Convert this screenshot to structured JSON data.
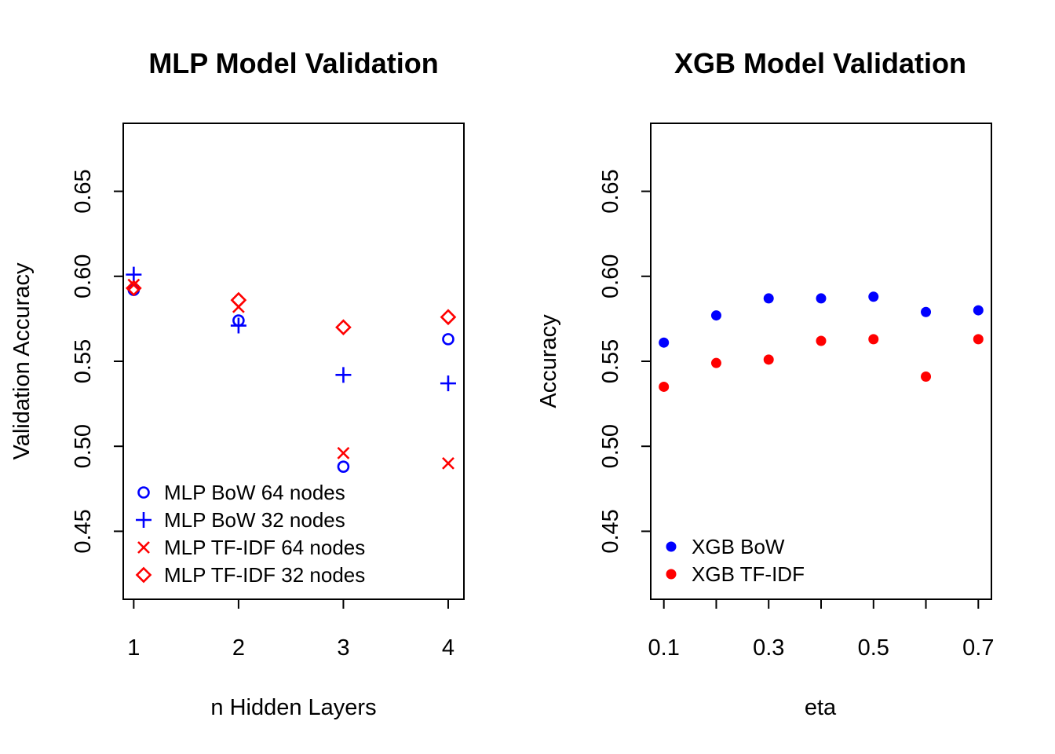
{
  "chart_data": [
    {
      "type": "scatter",
      "title": "MLP Model Validation",
      "xlabel": "n Hidden Layers",
      "ylabel": "Validation Accuracy",
      "xlim": [
        0.9,
        4.15
      ],
      "ylim": [
        0.41,
        0.69
      ],
      "x_ticks": [
        1,
        2,
        3,
        4
      ],
      "x_tick_labels": [
        "1",
        "2",
        "3",
        "4"
      ],
      "y_ticks": [
        0.45,
        0.5,
        0.55,
        0.6,
        0.65
      ],
      "y_tick_labels": [
        "0.45",
        "0.50",
        "0.55",
        "0.60",
        "0.65"
      ],
      "legend_position": "bottom-left",
      "series": [
        {
          "name": "MLP BoW 64 nodes",
          "color": "#0000ff",
          "marker": "circle-open",
          "x": [
            1,
            2,
            3,
            4
          ],
          "y": [
            0.592,
            0.574,
            0.488,
            0.563
          ]
        },
        {
          "name": "MLP BoW 32 nodes",
          "color": "#0000ff",
          "marker": "plus",
          "x": [
            1,
            2,
            3,
            4
          ],
          "y": [
            0.601,
            0.571,
            0.542,
            0.537
          ]
        },
        {
          "name": "MLP TF-IDF 64 nodes",
          "color": "#ff0000",
          "marker": "cross",
          "x": [
            1,
            2,
            3,
            4
          ],
          "y": [
            0.595,
            0.582,
            0.496,
            0.49
          ]
        },
        {
          "name": "MLP TF-IDF 32 nodes",
          "color": "#ff0000",
          "marker": "diamond-open",
          "x": [
            1,
            2,
            3,
            4
          ],
          "y": [
            0.593,
            0.586,
            0.57,
            0.576
          ]
        }
      ]
    },
    {
      "type": "scatter",
      "title": "XGB Model Validation",
      "xlabel": "eta",
      "ylabel": "Accuracy",
      "xlim": [
        0.075,
        0.725
      ],
      "ylim": [
        0.41,
        0.69
      ],
      "x_ticks": [
        0.1,
        0.2,
        0.3,
        0.4,
        0.5,
        0.6,
        0.7
      ],
      "x_tick_labels": [
        "0.1",
        "",
        "0.3",
        "",
        "0.5",
        "",
        "0.7"
      ],
      "y_ticks": [
        0.45,
        0.5,
        0.55,
        0.6,
        0.65
      ],
      "y_tick_labels": [
        "0.45",
        "0.50",
        "0.55",
        "0.60",
        "0.65"
      ],
      "legend_position": "bottom-left",
      "series": [
        {
          "name": "XGB BoW",
          "color": "#0000ff",
          "marker": "circle-filled",
          "x": [
            0.1,
            0.2,
            0.3,
            0.4,
            0.5,
            0.6,
            0.7
          ],
          "y": [
            0.561,
            0.577,
            0.587,
            0.587,
            0.588,
            0.579,
            0.58
          ]
        },
        {
          "name": "XGB TF-IDF",
          "color": "#ff0000",
          "marker": "circle-filled",
          "x": [
            0.1,
            0.2,
            0.3,
            0.4,
            0.5,
            0.6,
            0.7
          ],
          "y": [
            0.535,
            0.549,
            0.551,
            0.562,
            0.563,
            0.541,
            0.563
          ]
        }
      ]
    }
  ]
}
